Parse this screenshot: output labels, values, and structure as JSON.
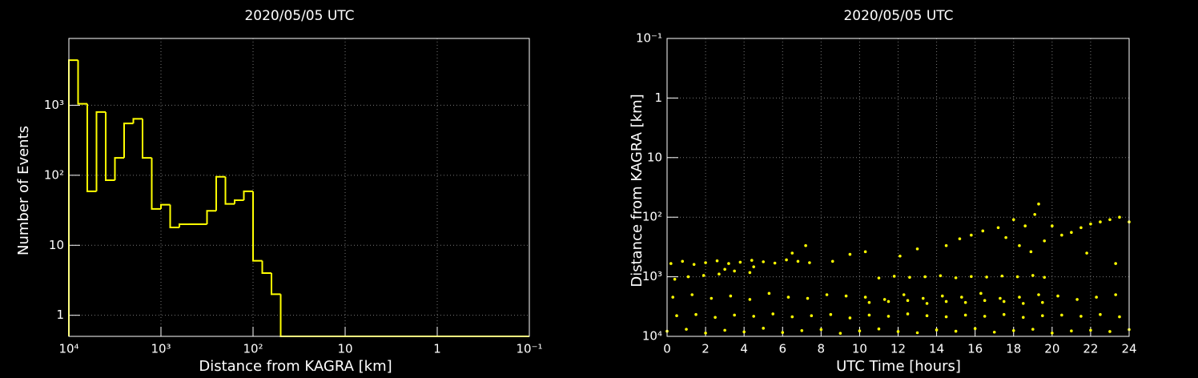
{
  "chart_data": [
    {
      "type": "histogram",
      "title": "2020/05/05 UTC",
      "xlabel": "Distance from KAGRA [km]",
      "ylabel": "Number of Events",
      "color": "#ffff00",
      "xlog": true,
      "ylog": true,
      "grid": true,
      "xlim": [
        10000,
        0.1
      ],
      "ylim": [
        0.5,
        9000
      ],
      "xticks": [
        {
          "value": 10000,
          "label": "10⁴"
        },
        {
          "value": 1000,
          "label": "10³"
        },
        {
          "value": 100,
          "label": "10²"
        },
        10,
        1,
        {
          "value": 0.1,
          "label": "10⁻¹"
        }
      ],
      "yticks": [
        1,
        10,
        {
          "value": 100,
          "label": "10²"
        },
        {
          "value": 1000,
          "label": "10³"
        }
      ],
      "bins": [
        10000,
        7943,
        6310,
        5012,
        3981,
        3162,
        2512,
        1995,
        1585,
        1259,
        1000,
        794.3,
        631,
        501.2,
        398.1,
        316.2,
        251.2,
        199.5,
        158.5,
        125.9,
        100,
        79.43,
        63.1,
        50.12,
        39.81,
        31.62,
        25.12,
        19.95,
        15.85,
        12.59,
        10,
        7.943,
        6.31,
        5.012,
        3.981,
        3.162,
        2.512,
        1.995,
        1.585,
        1.259,
        1,
        0.7943,
        0.631,
        0.5012,
        0.3981,
        0.3162,
        0.2512,
        0.1995,
        0.1585,
        0.1259,
        0.1
      ],
      "counts": [
        4400,
        1050,
        59,
        800,
        85,
        177,
        550,
        640,
        177,
        33,
        38,
        18,
        20,
        20,
        20,
        31,
        95,
        39,
        44,
        59,
        6,
        4,
        2,
        0,
        0,
        0,
        0,
        0,
        0,
        0,
        0,
        0,
        0,
        0,
        0,
        0,
        0,
        0,
        0,
        0,
        0,
        0,
        0,
        0,
        0,
        0,
        0,
        0,
        0,
        0
      ]
    },
    {
      "type": "scatter",
      "title": "2020/05/05 UTC",
      "xlabel": "UTC Time [hours]",
      "ylabel": "Distance from KAGRA [km]",
      "color": "#ffff00",
      "ylog": true,
      "grid": true,
      "xlim": [
        0,
        24
      ],
      "ylim": [
        10000,
        0.1
      ],
      "xticks": [
        0,
        2,
        4,
        6,
        8,
        10,
        12,
        14,
        16,
        18,
        20,
        22,
        24
      ],
      "yticks": [
        {
          "value": 0.1,
          "label": "10⁻¹"
        },
        1,
        10,
        {
          "value": 100,
          "label": "10²"
        },
        {
          "value": 1000,
          "label": "10³"
        },
        {
          "value": 10000,
          "label": "10⁴"
        }
      ],
      "x": [
        0,
        1,
        2,
        3,
        4,
        5,
        6,
        7,
        8,
        9,
        10,
        11,
        12,
        13,
        14,
        15,
        16,
        17,
        18,
        19,
        20,
        21,
        22,
        23,
        24,
        0.5,
        1.5,
        2.5,
        3.5,
        4.5,
        5.5,
        6.5,
        7.5,
        8.5,
        9.5,
        10.5,
        11.5,
        12.5,
        13.5,
        14.5,
        15.5,
        16.5,
        17.5,
        18.5,
        19.5,
        20.5,
        21.5,
        22.5,
        23.5,
        0.3,
        1.3,
        2.3,
        3.3,
        4.3,
        5.3,
        6.3,
        7.3,
        8.3,
        9.3,
        10.3,
        11.3,
        12.3,
        13.3,
        14.3,
        15.3,
        16.3,
        17.3,
        18.3,
        19.3,
        20.3,
        21.3,
        22.3,
        23.3,
        0.2,
        0.8,
        1.4,
        2.0,
        2.6,
        3.2,
        3.8,
        4.4,
        5.0,
        5.6,
        6.2,
        6.8,
        7.4,
        0.4,
        1.1,
        1.9,
        2.7,
        3.5,
        4.3,
        11,
        11.8,
        12.6,
        13.4,
        14.2,
        15,
        15.8,
        16.6,
        17.4,
        18.2,
        19,
        19.6,
        10.5,
        11.5,
        12.5,
        13.5,
        14.5,
        15.5,
        16.5,
        17.5,
        18.5,
        19.5,
        3.0,
        4.5,
        6.5,
        7.2,
        8.6,
        9.5,
        10.3,
        12.1,
        13.0,
        14.5,
        15.2,
        15.8,
        16.4,
        17.2,
        17.6,
        18.0,
        18.3,
        18.6,
        18.9,
        19.1,
        19.3,
        19.6,
        20.0,
        20.5,
        21.0,
        21.5,
        22.0,
        22.5,
        23.0,
        23.5,
        24.0,
        21.8,
        23.3
      ],
      "values": [
        8200,
        7600,
        8800,
        7900,
        8400,
        7300,
        8600,
        8000,
        7700,
        8900,
        8100,
        7500,
        8300,
        8700,
        7800,
        8200,
        7400,
        8500,
        8000,
        7600,
        8800,
        8100,
        7900,
        8300,
        7700,
        4500,
        4300,
        4800,
        4400,
        4600,
        4200,
        4700,
        4500,
        4300,
        4900,
        4400,
        4600,
        4200,
        4500,
        4700,
        4400,
        4600,
        4300,
        4800,
        4500,
        4400,
        4600,
        4300,
        4700,
        2200,
        2000,
        2300,
        2100,
        2400,
        1900,
        2200,
        2300,
        2000,
        2100,
        2200,
        2400,
        2000,
        2300,
        2100,
        2200,
        1900,
        2300,
        2200,
        2000,
        2100,
        2400,
        2200,
        2000,
        600,
        550,
        620,
        580,
        540,
        600,
        570,
        530,
        560,
        590,
        520,
        550,
        580,
        1100,
        1000,
        950,
        900,
        800,
        850,
        1050,
        980,
        1020,
        1000,
        960,
        1040,
        990,
        1010,
        970,
        1000,
        950,
        1020,
        2700,
        2600,
        2500,
        2800,
        2600,
        2700,
        2500,
        2600,
        2800,
        2700,
        750,
        680,
        400,
        300,
        550,
        420,
        380,
        450,
        340,
        300,
        230,
        200,
        170,
        150,
        220,
        110,
        300,
        140,
        380,
        90,
        60,
        250,
        140,
        200,
        180,
        150,
        130,
        120,
        110,
        100,
        120,
        400,
        600
      ]
    }
  ]
}
